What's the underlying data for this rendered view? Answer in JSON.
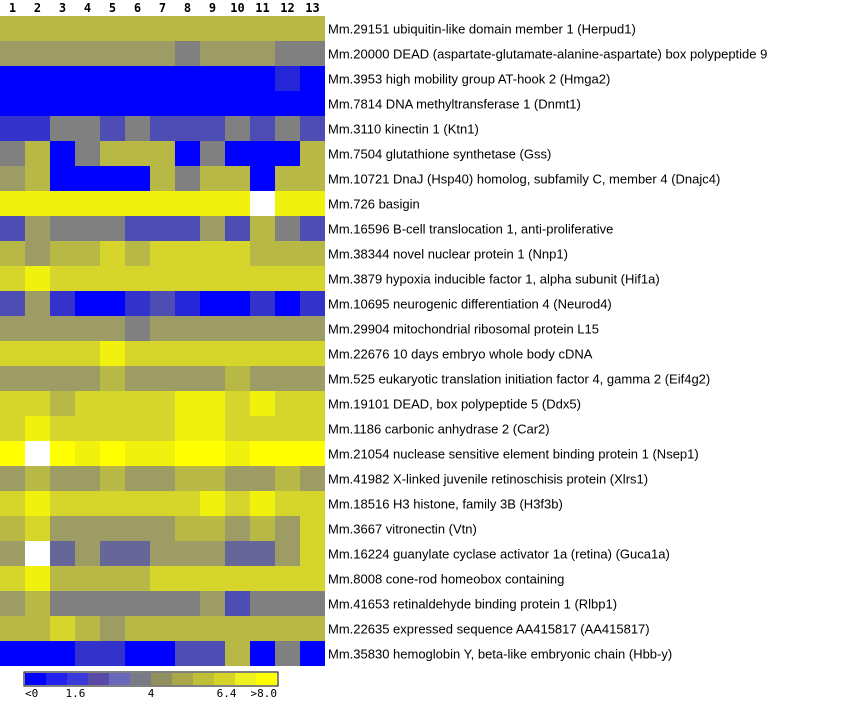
{
  "chart_data": {
    "type": "heatmap",
    "columns": [
      "1",
      "2",
      "3",
      "4",
      "5",
      "6",
      "7",
      "8",
      "9",
      "10",
      "11",
      "12",
      "13"
    ],
    "rows": [
      "Mm.29151   ubiquitin-like domain member 1 (Herpud1)",
      "Mm.20000  DEAD (aspartate-glutamate-alanine-aspartate) box polypeptide 9",
      "Mm.3953   high mobility group AT-hook 2 (Hmga2)",
      "Mm.7814   DNA methyltransferase 1 (Dnmt1)",
      "Mm.3110   kinectin 1 (Ktn1)",
      "Mm.7504   glutathione synthetase (Gss)",
      "Mm.10721  DnaJ (Hsp40) homolog, subfamily C, member 4 (Dnajc4)",
      "Mm.726    basigin",
      "Mm.16596  B-cell translocation  1, anti-proliferative",
      "Mm.38344  novel nuclear protein 1 (Nnp1)",
      "Mm.3879   hypoxia inducible factor 1, alpha subunit (Hif1a)",
      "Mm.10695  neurogenic differentiation 4 (Neurod4)",
      "Mm.29904  mitochondrial ribosomal protein L15",
      "Mm.22676  10 days embryo whole body cDNA",
      "Mm.525    eukaryotic translation initiation factor 4, gamma 2 (Eif4g2)",
      "Mm.19101  DEAD, box polypeptide 5 (Ddx5)",
      "Mm.1186   carbonic anhydrase 2 (Car2)",
      "Mm.21054  nuclease sensitive element binding protein 1 (Nsep1)",
      "Mm.41982  X-linked juvenile retinoschisis protein (Xlrs1)",
      "Mm.18516  H3 histone, family 3B (H3f3b)",
      "Mm.3667   vitronectin (Vtn)",
      "Mm.16224  guanylate cyclase activator 1a (retina) (Guca1a)",
      "Mm.8008   cone-rod homeobox containing",
      "Mm.41653  retinaldehyde binding protein 1 (Rlbp1)",
      "Mm.22635  expressed sequence AA415817 (AA415817)",
      "Mm.35830  hemoglobin Y, beta-like embryonic chain (Hbb-y)"
    ],
    "values": [
      [
        5.6,
        5.6,
        5.6,
        5.6,
        5.6,
        5.6,
        5.6,
        5.6,
        5.6,
        5.6,
        5.6,
        5.6,
        5.6
      ],
      [
        4.8,
        4.8,
        4.8,
        4.8,
        4.8,
        4.8,
        4.8,
        4.0,
        4.8,
        4.8,
        4.8,
        4.0,
        4.0
      ],
      [
        0,
        0,
        0,
        0,
        0,
        0,
        0,
        0,
        0,
        0,
        0,
        1.2,
        0
      ],
      [
        0,
        0,
        0,
        0,
        0,
        0,
        0,
        0,
        0,
        0,
        0,
        0,
        0
      ],
      [
        1.6,
        1.6,
        4.0,
        4.0,
        2.4,
        4.0,
        2.4,
        2.4,
        2.4,
        4.0,
        2.4,
        4.0,
        2.4
      ],
      [
        4.0,
        5.6,
        0,
        4.0,
        5.6,
        5.6,
        5.6,
        0,
        4.0,
        0,
        0,
        0,
        5.6
      ],
      [
        4.8,
        5.6,
        0,
        0,
        0,
        0,
        5.6,
        4.0,
        5.6,
        5.6,
        0,
        5.6,
        5.6
      ],
      [
        7.2,
        7.2,
        7.2,
        7.2,
        7.2,
        7.2,
        7.2,
        7.2,
        7.2,
        7.2,
        8.0,
        7.2,
        7.2
      ],
      [
        2.4,
        4.8,
        4.0,
        4.0,
        4.0,
        2.4,
        2.4,
        2.4,
        4.8,
        2.4,
        5.6,
        4.0,
        2.4
      ],
      [
        5.6,
        4.8,
        5.6,
        5.6,
        6.4,
        5.6,
        6.4,
        6.4,
        6.4,
        6.4,
        5.6,
        5.6,
        5.6
      ],
      [
        6.4,
        7.2,
        6.4,
        6.4,
        6.4,
        6.4,
        6.4,
        6.4,
        6.4,
        6.4,
        6.4,
        6.4,
        6.4
      ],
      [
        2.4,
        4.8,
        1.6,
        0,
        0,
        1.6,
        2.4,
        1.2,
        0,
        0,
        1.6,
        0,
        1.6
      ],
      [
        4.8,
        4.8,
        4.8,
        4.8,
        4.8,
        4.0,
        4.8,
        4.8,
        4.8,
        4.8,
        4.8,
        4.8,
        4.8
      ],
      [
        6.4,
        6.4,
        6.4,
        6.4,
        7.2,
        6.4,
        6.4,
        6.4,
        6.4,
        6.4,
        6.4,
        6.4,
        6.4
      ],
      [
        4.8,
        4.8,
        4.8,
        4.8,
        5.6,
        4.8,
        4.8,
        4.8,
        4.8,
        5.6,
        4.8,
        4.8,
        4.8
      ],
      [
        6.4,
        6.4,
        5.6,
        6.4,
        6.4,
        6.4,
        6.4,
        7.2,
        7.2,
        6.4,
        7.2,
        6.4,
        6.4
      ],
      [
        6.4,
        7.2,
        6.4,
        6.4,
        6.4,
        6.4,
        6.4,
        7.2,
        7.2,
        6.4,
        6.4,
        6.4,
        6.4
      ],
      [
        7.6,
        8.0,
        7.6,
        7.2,
        7.6,
        7.2,
        7.2,
        7.6,
        7.6,
        7.2,
        7.6,
        7.6,
        7.6
      ],
      [
        4.8,
        5.6,
        4.8,
        4.8,
        5.6,
        4.8,
        4.8,
        5.6,
        5.6,
        4.8,
        4.8,
        5.6,
        4.8
      ],
      [
        6.4,
        7.2,
        6.4,
        6.4,
        6.4,
        6.4,
        6.4,
        6.4,
        7.2,
        6.4,
        7.2,
        6.4,
        6.4
      ],
      [
        5.6,
        6.4,
        4.8,
        4.8,
        4.8,
        4.8,
        4.8,
        5.6,
        5.6,
        4.8,
        5.6,
        4.8,
        6.4
      ],
      [
        4.8,
        8.0,
        3.2,
        4.8,
        3.2,
        3.2,
        4.8,
        4.8,
        4.8,
        3.2,
        3.2,
        4.8,
        6.4
      ],
      [
        6.4,
        7.2,
        5.6,
        5.6,
        5.6,
        5.6,
        6.4,
        6.4,
        6.4,
        6.4,
        6.4,
        6.4,
        6.4
      ],
      [
        4.8,
        5.6,
        4.0,
        4.0,
        4.0,
        4.0,
        4.0,
        4.0,
        4.8,
        2.4,
        4.0,
        4.0,
        4.0
      ],
      [
        5.6,
        5.6,
        6.4,
        5.6,
        4.8,
        5.6,
        5.6,
        5.6,
        5.6,
        5.6,
        5.6,
        5.6,
        5.6
      ],
      [
        0,
        0,
        0,
        1.6,
        1.6,
        0,
        0,
        2.4,
        2.4,
        5.6,
        0,
        4.0,
        0
      ]
    ],
    "color_scale": {
      "min_label": "<0",
      "max_label": ">8.0",
      "tick_labels": [
        "<0",
        "1.6",
        "4",
        "6.4",
        ">8.0"
      ],
      "tick_values": [
        0,
        1.6,
        4,
        6.4,
        8.0
      ],
      "colors": [
        "#0000ff",
        "#2222ee",
        "#3a3ada",
        "#5a4aa8",
        "#6868bc",
        "#7a7a86",
        "#90905e",
        "#a8a84a",
        "#c0c038",
        "#d4d428",
        "#f0f020",
        "#ffff00"
      ],
      "low_color": "#0000ff",
      "mid_color": "#808080",
      "high_color": "#ffff00",
      "max_color": "#ffffff"
    }
  }
}
